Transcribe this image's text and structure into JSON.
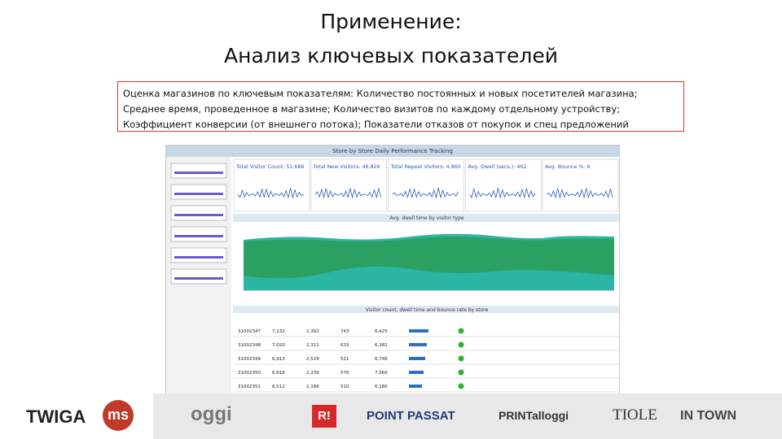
{
  "title": [
    "Применение:",
    "Анализ ключевых показателей"
  ],
  "description": "Оценка магазинов по ключевым показателям: Количество постоянных и новых посетителей магазина; Среднее время, проведенное в магазине; Количество визитов по каждому отдельному устройству; Коэффициент конверсии (от внешнего потока); Показатели отказов от покупок и спец предложений",
  "dashboard": {
    "title": "Store by Store Daily Performance Tracking",
    "kpis": [
      "Total Visitor Count: 51,686",
      "Total New Visitors: 46,826",
      "Total Repeat Visitors: 4,860",
      "Avg. Dwell (secs.): 462",
      "Avg. Bounce %: 6"
    ],
    "area_chart_title": "Avg. dwell time by visitor type",
    "table_title": "Visitor count, dwell time and bounce rate by store",
    "table_rows": [
      [
        "31002347",
        "7,132",
        "2,362",
        "743",
        "6,425"
      ],
      [
        "31002348",
        "7,020",
        "2,311",
        "633",
        "6,381"
      ],
      [
        "31002349",
        "6,913",
        "2,529",
        "521",
        "6,746"
      ],
      [
        "31002350",
        "6,618",
        "2,239",
        "576",
        "7,560"
      ],
      [
        "31002351",
        "6,512",
        "2,186",
        "510",
        "6,180"
      ]
    ]
  },
  "logos": [
    "TWIGA",
    "ms",
    "oggi",
    "R!",
    "POINT PASSAT",
    "PRINTalloggi",
    "TIOLE",
    "IN TOWN"
  ]
}
